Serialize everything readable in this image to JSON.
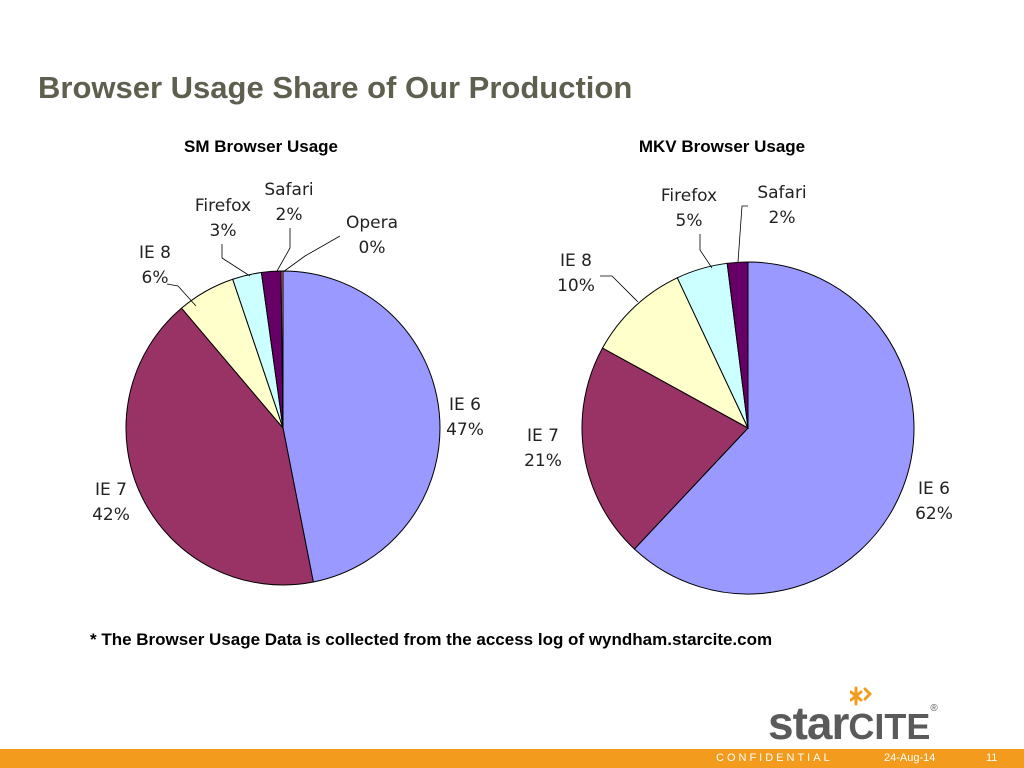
{
  "slide": {
    "title": "Browser Usage Share of Our Production",
    "footnote": "* The Browser Usage Data is collected from the access log of wyndham.starcite.com"
  },
  "footer": {
    "confidential": "CONFIDENTIAL",
    "date": "24-Aug-14",
    "page": "11",
    "bar_color": "#f29b1d"
  },
  "logo": {
    "name_part1": "star",
    "name_part2": "CITE",
    "registered": "®",
    "mark_color": "#f29b1d"
  },
  "chart_data": [
    {
      "type": "pie",
      "title": "SM Browser Usage",
      "series": [
        {
          "label": "IE 6",
          "percent_label": "47%",
          "value": 47,
          "color": "#9999ff"
        },
        {
          "label": "IE 7",
          "percent_label": "42%",
          "value": 42,
          "color": "#993366"
        },
        {
          "label": "IE 8",
          "percent_label": "6%",
          "value": 6,
          "color": "#ffffcc"
        },
        {
          "label": "Firefox",
          "percent_label": "3%",
          "value": 3,
          "color": "#ccffff"
        },
        {
          "label": "Safari",
          "percent_label": "2%",
          "value": 2,
          "color": "#660066"
        },
        {
          "label": "Opera",
          "percent_label": "0%",
          "value": 0.2,
          "color": "#ff8080"
        }
      ]
    },
    {
      "type": "pie",
      "title": "MKV Browser Usage",
      "series": [
        {
          "label": "IE 6",
          "percent_label": "62%",
          "value": 62,
          "color": "#9999ff"
        },
        {
          "label": "IE 7",
          "percent_label": "21%",
          "value": 21,
          "color": "#993366"
        },
        {
          "label": "IE 8",
          "percent_label": "10%",
          "value": 10,
          "color": "#ffffcc"
        },
        {
          "label": "Firefox",
          "percent_label": "5%",
          "value": 5,
          "color": "#ccffff"
        },
        {
          "label": "Safari",
          "percent_label": "2%",
          "value": 2,
          "color": "#660066"
        }
      ]
    }
  ]
}
